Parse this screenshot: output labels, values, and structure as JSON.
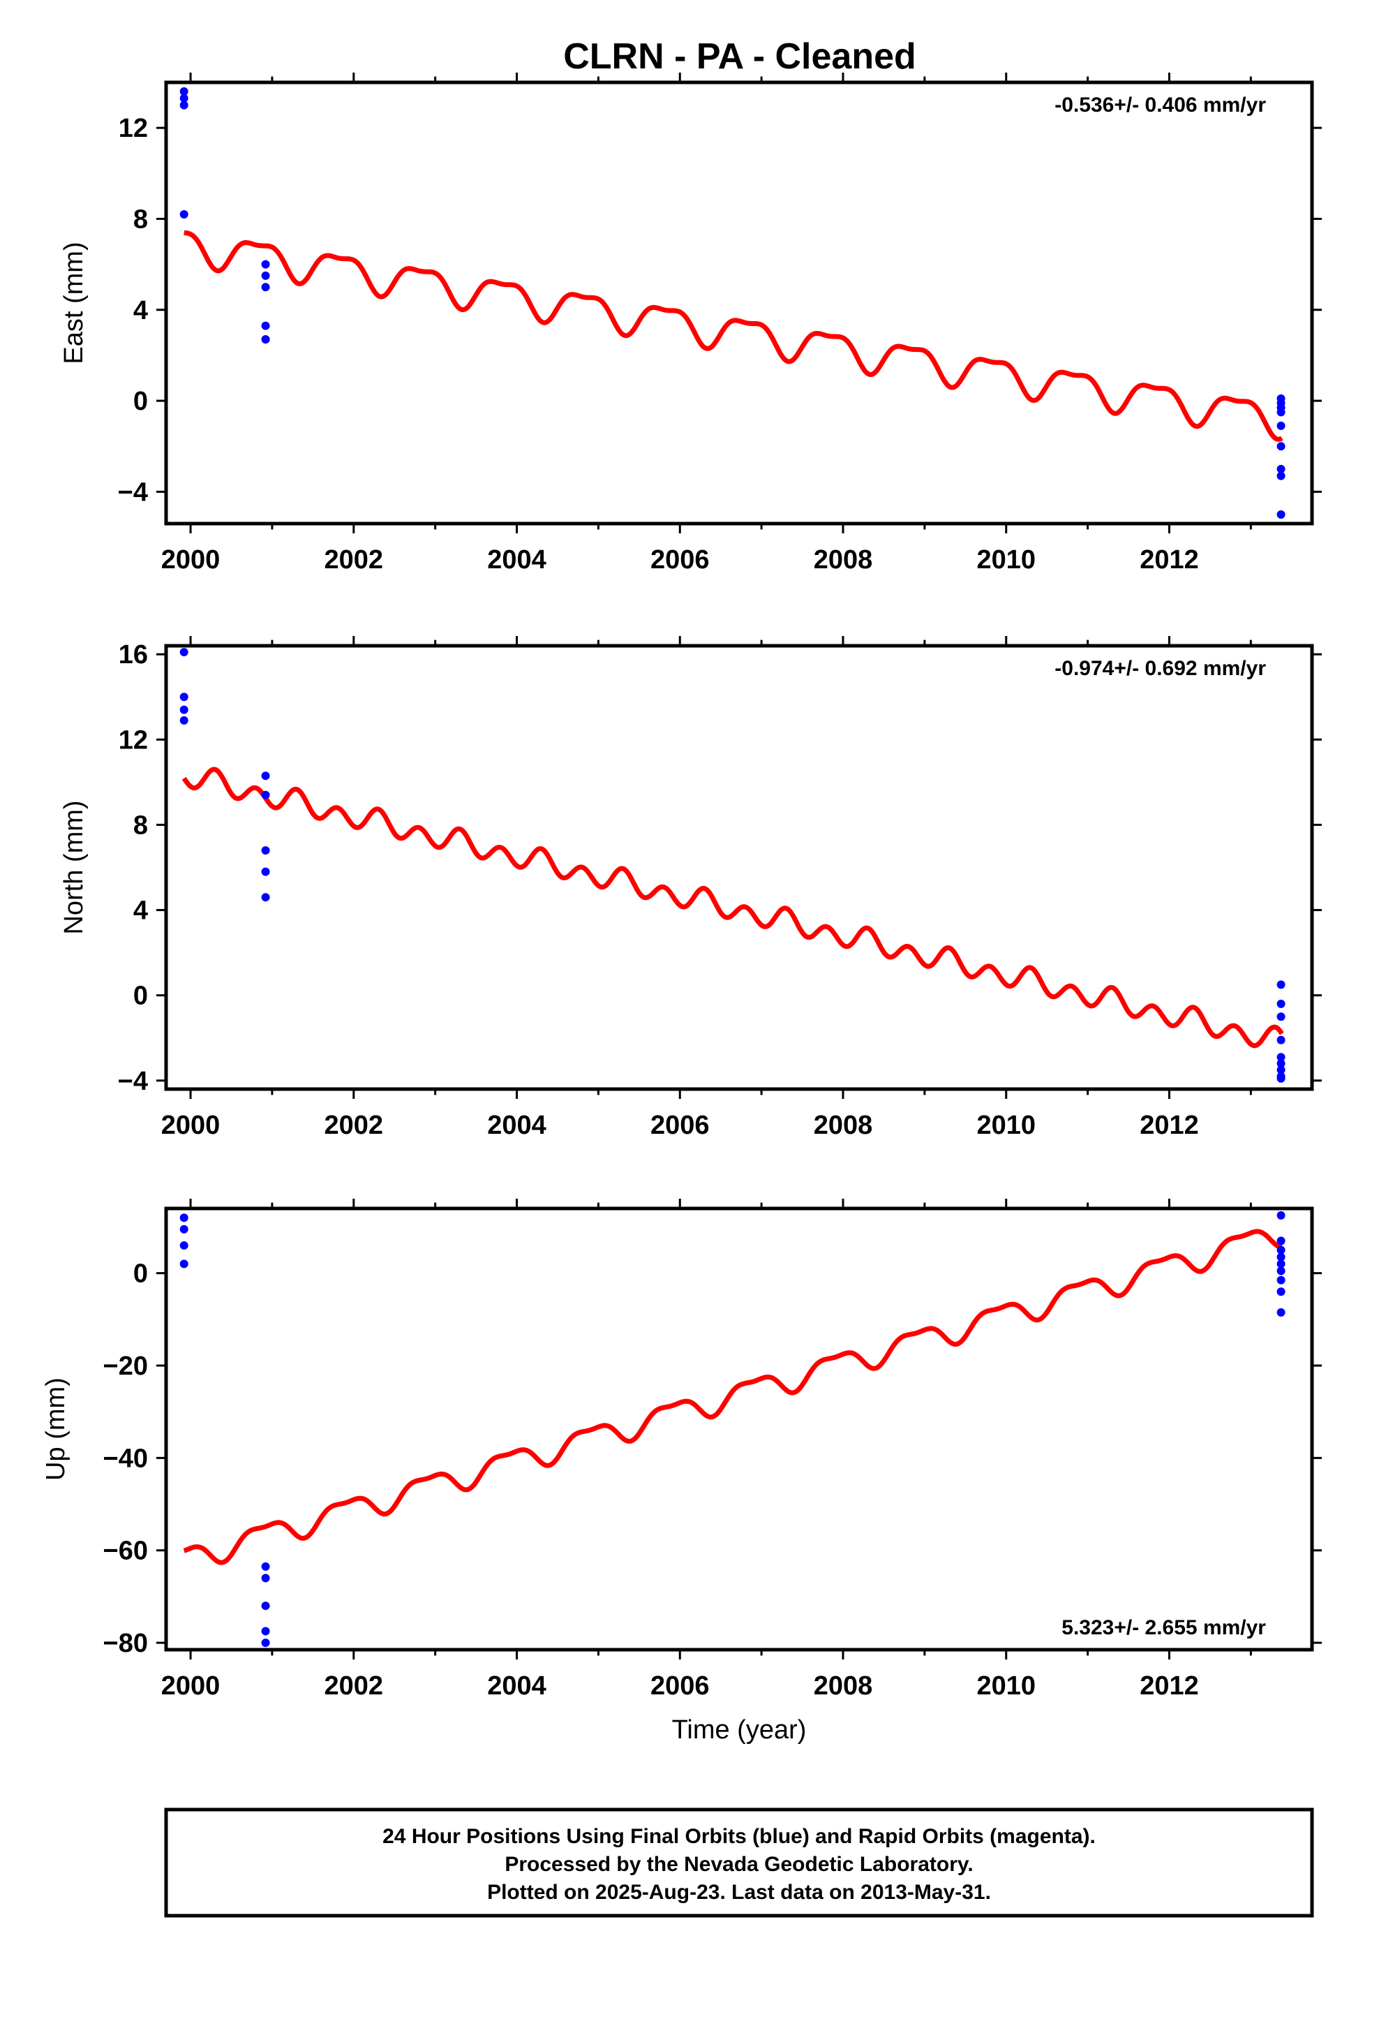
{
  "title": "CLRN  - PA - Cleaned",
  "xlabel": "Time (year)",
  "footer": {
    "lines": [
      "24 Hour Positions Using Final Orbits (blue) and Rapid Orbits (magenta).",
      "Processed by the Nevada Geodetic Laboratory.",
      "Plotted on 2025-Aug-23. Last data on 2013-May-31."
    ]
  },
  "colors": {
    "points": "#0000ff",
    "model": "#ff0000",
    "frame": "#000000"
  },
  "chart_data": [
    {
      "type": "scatter",
      "ylabel": "East (mm)",
      "rate_text": "-0.536+/- 0.406 mm/yr",
      "rate_position": "top-right",
      "xlim": [
        1999.7,
        2013.75
      ],
      "ylim": [
        -5.4,
        14.0
      ],
      "xticks": [
        2000,
        2002,
        2004,
        2006,
        2008,
        2010,
        2012
      ],
      "yticks": [
        -4,
        0,
        4,
        8,
        12
      ],
      "ytick_labels": [
        "−4",
        "0",
        "4",
        "8",
        "12"
      ],
      "points": {
        "name": "Final Orbits",
        "x": [
          1999.92,
          1999.92,
          1999.92,
          1999.92,
          2000.92,
          2000.92,
          2000.92,
          2000.92,
          2000.92,
          2000.92,
          2013.37,
          2013.37,
          2013.37,
          2013.37,
          2013.37,
          2013.37,
          2013.37,
          2013.37,
          2013.37
        ],
        "y": [
          13.6,
          13.3,
          13.0,
          8.2,
          6.0,
          5.5,
          5.0,
          3.3,
          2.7,
          2.7,
          0.1,
          -0.1,
          -0.5,
          -1.1,
          -2.0,
          -3.0,
          -3.3,
          -5.0,
          -0.3
        ]
      },
      "model": {
        "name": "Model fit",
        "x_start": 1999.92,
        "x_end": 2013.38,
        "offset_at_start": 6.9,
        "rate": -0.57,
        "annual_amplitude": 0.7,
        "annual_peak": 0.83,
        "semiannual_amplitude": 0.25,
        "semiannual_peak": 0.08
      }
    },
    {
      "type": "scatter",
      "ylabel": "North (mm)",
      "rate_text": "-0.974+/- 0.692 mm/yr",
      "rate_position": "top-right",
      "xlim": [
        1999.7,
        2013.75
      ],
      "ylim": [
        -4.4,
        16.4
      ],
      "xticks": [
        2000,
        2002,
        2004,
        2006,
        2008,
        2010,
        2012
      ],
      "yticks": [
        -4,
        0,
        4,
        8,
        12,
        16
      ],
      "ytick_labels": [
        "−4",
        "0",
        "4",
        "8",
        "12",
        "16"
      ],
      "points": {
        "name": "Final Orbits",
        "x": [
          1999.92,
          1999.92,
          1999.92,
          1999.92,
          2000.92,
          2000.92,
          2000.92,
          2000.92,
          2000.92,
          2013.37,
          2013.37,
          2013.37,
          2013.37,
          2013.37,
          2013.37,
          2013.37,
          2013.37,
          2013.37
        ],
        "y": [
          16.1,
          14.0,
          13.4,
          12.9,
          10.3,
          9.4,
          6.8,
          5.8,
          4.6,
          0.5,
          -0.4,
          -1.0,
          -2.1,
          -2.9,
          -3.2,
          -3.5,
          -3.8,
          -3.9
        ]
      },
      "model": {
        "name": "Model fit",
        "x_start": 1999.92,
        "x_end": 2013.38,
        "offset_at_start": 10.3,
        "rate": -0.93,
        "annual_amplitude": 0.2,
        "annual_peak": 0.3,
        "semiannual_amplitude": 0.45,
        "semiannual_peak": 0.3
      }
    },
    {
      "type": "scatter",
      "ylabel": "Up (mm)",
      "rate_text": "5.323+/- 2.655 mm/yr",
      "rate_position": "bottom-right",
      "xlim": [
        1999.7,
        2013.75
      ],
      "ylim": [
        -81.5,
        14.0
      ],
      "xticks": [
        2000,
        2002,
        2004,
        2006,
        2008,
        2010,
        2012
      ],
      "yticks": [
        -80,
        -60,
        -40,
        -20,
        0
      ],
      "ytick_labels": [
        "−80",
        "−60",
        "−40",
        "−20",
        "0"
      ],
      "points": {
        "name": "Final Orbits",
        "x": [
          1999.92,
          1999.92,
          1999.92,
          1999.92,
          2000.92,
          2000.92,
          2000.92,
          2000.92,
          2000.92,
          2013.37,
          2013.37,
          2013.37,
          2013.37,
          2013.37,
          2013.37,
          2013.37,
          2013.37,
          2013.37
        ],
        "y": [
          12.0,
          9.5,
          6.0,
          2.0,
          -63.5,
          -66.0,
          -72.0,
          -77.5,
          -80.0,
          12.5,
          7.0,
          3.5,
          2.0,
          0.5,
          -1.5,
          -4.0,
          -8.5,
          5.0
        ]
      },
      "model": {
        "name": "Model fit",
        "x_start": 1999.92,
        "x_end": 2013.38,
        "offset_at_start": -61.7,
        "rate": 5.25,
        "annual_amplitude": 2.5,
        "annual_peak": 0.9,
        "semiannual_amplitude": 0.9,
        "semiannual_peak": 0.15
      }
    }
  ]
}
